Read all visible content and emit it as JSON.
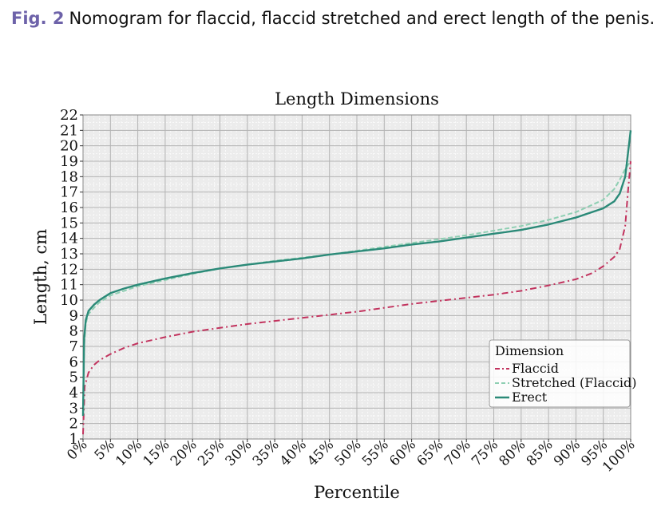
{
  "caption": {
    "label": "Fig. 2",
    "text": "Nomogram for flaccid, flaccid stretched and erect length of the penis."
  },
  "chart_data": {
    "type": "line",
    "title": "Length Dimensions",
    "xlabel": "Percentile",
    "ylabel": "Length, cm",
    "xlim": [
      0,
      100
    ],
    "ylim": [
      1,
      22
    ],
    "x_ticks": [
      "0%",
      "5%",
      "10%",
      "15%",
      "20%",
      "25%",
      "30%",
      "35%",
      "40%",
      "45%",
      "50%",
      "55%",
      "60%",
      "65%",
      "70%",
      "75%",
      "80%",
      "85%",
      "90%",
      "95%",
      "100%"
    ],
    "y_ticks": [
      1,
      2,
      3,
      4,
      5,
      6,
      7,
      8,
      9,
      10,
      11,
      12,
      13,
      14,
      15,
      16,
      17,
      18,
      19,
      20,
      21,
      22
    ],
    "grid": true,
    "legend": {
      "title": "Dimension",
      "position": "bottom-right"
    },
    "series": [
      {
        "name": "Flaccid",
        "color": "#c2335e",
        "dash": "dashdot",
        "points": [
          [
            0,
            1.3
          ],
          [
            0.3,
            4.4
          ],
          [
            1,
            5.3
          ],
          [
            2,
            5.8
          ],
          [
            3,
            6.1
          ],
          [
            5,
            6.5
          ],
          [
            7.5,
            6.9
          ],
          [
            10,
            7.2
          ],
          [
            15,
            7.6
          ],
          [
            20,
            7.95
          ],
          [
            25,
            8.2
          ],
          [
            30,
            8.45
          ],
          [
            35,
            8.65
          ],
          [
            40,
            8.85
          ],
          [
            45,
            9.05
          ],
          [
            50,
            9.25
          ],
          [
            55,
            9.5
          ],
          [
            60,
            9.75
          ],
          [
            65,
            9.95
          ],
          [
            70,
            10.15
          ],
          [
            75,
            10.35
          ],
          [
            80,
            10.6
          ],
          [
            85,
            10.95
          ],
          [
            90,
            11.35
          ],
          [
            93,
            11.75
          ],
          [
            95,
            12.2
          ],
          [
            97,
            12.8
          ],
          [
            98,
            13.3
          ],
          [
            99,
            14.8
          ],
          [
            99.5,
            17
          ],
          [
            100,
            19
          ]
        ]
      },
      {
        "name": "Stretched (Flaccid)",
        "color": "#8fcfb3",
        "dash": "dashed",
        "points": [
          [
            0,
            2.5
          ],
          [
            0.2,
            7
          ],
          [
            0.5,
            8.5
          ],
          [
            1,
            9.1
          ],
          [
            2,
            9.5
          ],
          [
            3,
            9.85
          ],
          [
            5,
            10.3
          ],
          [
            7.5,
            10.6
          ],
          [
            10,
            10.9
          ],
          [
            15,
            11.3
          ],
          [
            20,
            11.7
          ],
          [
            25,
            12.05
          ],
          [
            30,
            12.3
          ],
          [
            35,
            12.55
          ],
          [
            40,
            12.75
          ],
          [
            45,
            12.95
          ],
          [
            50,
            13.2
          ],
          [
            55,
            13.45
          ],
          [
            60,
            13.7
          ],
          [
            65,
            13.95
          ],
          [
            70,
            14.2
          ],
          [
            75,
            14.5
          ],
          [
            80,
            14.8
          ],
          [
            85,
            15.2
          ],
          [
            90,
            15.7
          ],
          [
            95,
            16.5
          ],
          [
            97,
            17.2
          ],
          [
            98,
            17.8
          ],
          [
            99,
            18.5
          ],
          [
            100,
            19
          ]
        ]
      },
      {
        "name": "Erect",
        "color": "#2b8a78",
        "dash": "solid",
        "points": [
          [
            0,
            2.5
          ],
          [
            0.2,
            7.5
          ],
          [
            0.5,
            8.7
          ],
          [
            1,
            9.3
          ],
          [
            2,
            9.7
          ],
          [
            3,
            10
          ],
          [
            5,
            10.45
          ],
          [
            7.5,
            10.75
          ],
          [
            10,
            11
          ],
          [
            15,
            11.4
          ],
          [
            20,
            11.75
          ],
          [
            25,
            12.05
          ],
          [
            30,
            12.3
          ],
          [
            35,
            12.5
          ],
          [
            40,
            12.7
          ],
          [
            45,
            12.95
          ],
          [
            50,
            13.15
          ],
          [
            55,
            13.35
          ],
          [
            60,
            13.6
          ],
          [
            65,
            13.8
          ],
          [
            70,
            14.05
          ],
          [
            75,
            14.3
          ],
          [
            80,
            14.55
          ],
          [
            85,
            14.9
          ],
          [
            90,
            15.35
          ],
          [
            95,
            15.95
          ],
          [
            97,
            16.4
          ],
          [
            98,
            16.9
          ],
          [
            99,
            18
          ],
          [
            100,
            21
          ]
        ]
      }
    ]
  }
}
